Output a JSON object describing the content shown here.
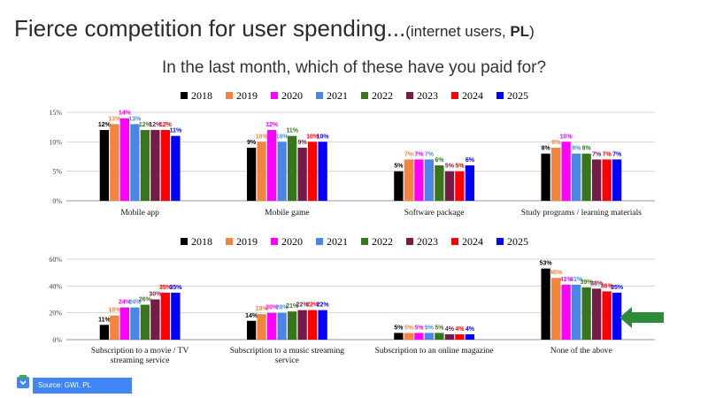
{
  "slide": {
    "title": "Fierce competition for user spending...",
    "title_paren_open": "(internet users, ",
    "title_country": "PL",
    "title_paren_close": ")",
    "question": "In the last month, which of these have you paid for?",
    "source": "Source: GWI, PL"
  },
  "colors": {
    "2018": "#000000",
    "2019": "#f4843c",
    "2020": "#ff00ff",
    "2021": "#4a86e8",
    "2022": "#38761d",
    "2023": "#741b47",
    "2024": "#ff0000",
    "2025": "#0000ff",
    "arrow": "#2e8b3a",
    "source_badge": "#4285f4"
  },
  "icons": {
    "logo": "gwi-logo-icon",
    "arrow": "left-arrow-icon"
  },
  "chart_data": [
    {
      "type": "bar",
      "legend_position": "top-center",
      "grid": true,
      "ylim": [
        0,
        15
      ],
      "yticks": [
        "0%",
        "5%",
        "10%",
        "15%"
      ],
      "categories": [
        "Mobile app",
        "Mobile game",
        "Software package",
        "Study programs / learning materials"
      ],
      "series": [
        {
          "name": "2018",
          "values": [
            12,
            9,
            5,
            8
          ],
          "labels": [
            "12%",
            "9%",
            "5%",
            "8%"
          ]
        },
        {
          "name": "2019",
          "values": [
            13,
            10,
            7,
            9
          ],
          "labels": [
            "13%",
            "10%",
            "7%",
            "9%"
          ]
        },
        {
          "name": "2020",
          "values": [
            14,
            12,
            7,
            10
          ],
          "labels": [
            "14%",
            "12%",
            "7%",
            "10%"
          ]
        },
        {
          "name": "2021",
          "values": [
            13,
            10,
            7,
            8
          ],
          "labels": [
            "13%",
            "10%",
            "7%",
            "8%"
          ]
        },
        {
          "name": "2022",
          "values": [
            12,
            11,
            6,
            8
          ],
          "labels": [
            "12%",
            "11%",
            "6%",
            "8%"
          ]
        },
        {
          "name": "2023",
          "values": [
            12,
            9,
            5,
            7
          ],
          "labels": [
            "12%",
            "9%",
            "5%",
            "7%"
          ]
        },
        {
          "name": "2024",
          "values": [
            12,
            10,
            5,
            7
          ],
          "labels": [
            "12%",
            "10%",
            "5%",
            "7%"
          ]
        },
        {
          "name": "2025",
          "values": [
            11,
            10,
            6,
            7
          ],
          "labels": [
            "11%",
            "10%",
            "6%",
            "7%"
          ]
        }
      ]
    },
    {
      "type": "bar",
      "legend_position": "top-center",
      "grid": true,
      "ylim": [
        0,
        60
      ],
      "yticks": [
        "0%",
        "20%",
        "40%",
        "60%"
      ],
      "categories": [
        "Subscription to a movie / TV streaming service",
        "Subscription to a music streaming service",
        "Subscription to an online magazine",
        "None of the above"
      ],
      "series": [
        {
          "name": "2018",
          "values": [
            11,
            14,
            5,
            53
          ],
          "labels": [
            "11%",
            "14%",
            "5%",
            "53%"
          ]
        },
        {
          "name": "2019",
          "values": [
            18,
            19,
            5,
            46
          ],
          "labels": [
            "18%",
            "19%",
            "5%",
            "46%"
          ]
        },
        {
          "name": "2020",
          "values": [
            24,
            20,
            5,
            41
          ],
          "labels": [
            "24%",
            "20%",
            "5%",
            "41%"
          ]
        },
        {
          "name": "2021",
          "values": [
            24,
            20,
            5,
            41
          ],
          "labels": [
            "24%",
            "20%",
            "5%",
            "41%"
          ]
        },
        {
          "name": "2022",
          "values": [
            26,
            21,
            5,
            39
          ],
          "labels": [
            "26%",
            "21%",
            "5%",
            "39%"
          ]
        },
        {
          "name": "2023",
          "values": [
            30,
            22,
            4,
            38
          ],
          "labels": [
            "30%",
            "22%",
            "4%",
            "38%"
          ]
        },
        {
          "name": "2024",
          "values": [
            35,
            22,
            4,
            36
          ],
          "labels": [
            "35%",
            "22%",
            "4%",
            "36%"
          ]
        },
        {
          "name": "2025",
          "values": [
            35,
            22,
            4,
            35
          ],
          "labels": [
            "35%",
            "22%",
            "4%",
            "35%"
          ]
        }
      ]
    }
  ]
}
